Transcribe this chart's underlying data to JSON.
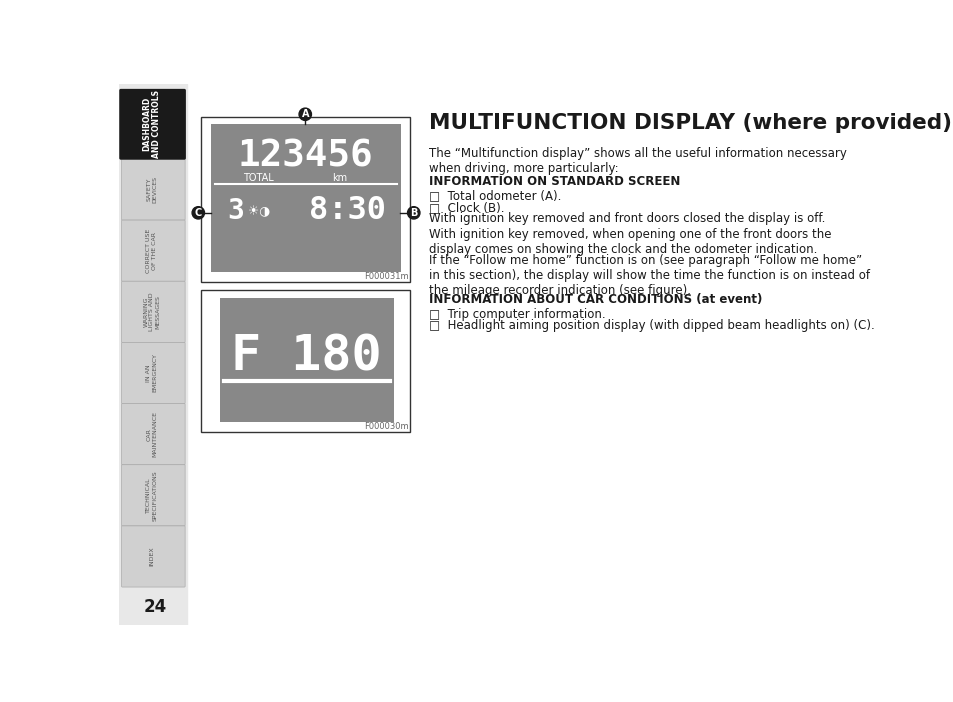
{
  "bg_color": "#ffffff",
  "page_number": "24",
  "sidebar": {
    "tabs": [
      {
        "label": "DASHBOARD\nAND CONTROLS",
        "active": true,
        "bg": "#1a1a1a",
        "fg": "#ffffff"
      },
      {
        "label": "SAFETY\nDEVICES",
        "active": false,
        "bg": "#d0d0d0",
        "fg": "#555555"
      },
      {
        "label": "CORRECT USE\nOF THE CAR",
        "active": false,
        "bg": "#d0d0d0",
        "fg": "#555555"
      },
      {
        "label": "WARNING\nLIGHTS AND\nMESSAGES",
        "active": false,
        "bg": "#d0d0d0",
        "fg": "#555555"
      },
      {
        "label": "IN AN\nEMERGENCY",
        "active": false,
        "bg": "#d0d0d0",
        "fg": "#555555"
      },
      {
        "label": "CAR\nMAINTENANCE",
        "active": false,
        "bg": "#d0d0d0",
        "fg": "#555555"
      },
      {
        "label": "TECHNICAL\nSPECIFICATIONS",
        "active": false,
        "bg": "#d0d0d0",
        "fg": "#555555"
      },
      {
        "label": "INDEX",
        "active": false,
        "bg": "#d0d0d0",
        "fg": "#555555"
      }
    ]
  },
  "title": "MULTIFUNCTION DISPLAY (where provided)",
  "body_text": [
    {
      "type": "para",
      "text": "The “Multifunction display” shows all the useful information necessary\nwhen driving, more particularly:",
      "lines": 2
    },
    {
      "type": "heading",
      "text": "INFORMATION ON STANDARD SCREEN",
      "lines": 1
    },
    {
      "type": "bullet",
      "text": "□  Total odometer (A).",
      "lines": 1
    },
    {
      "type": "bullet",
      "text": "□  Clock (B).",
      "lines": 1
    },
    {
      "type": "para",
      "text": "With ignition key removed and front doors closed the display is off.",
      "lines": 1
    },
    {
      "type": "para",
      "text": "With ignition key removed, when opening one of the front doors the\ndisplay comes on showing the clock and the odometer indication.",
      "lines": 2
    },
    {
      "type": "para",
      "text": "If the “Follow me home” function is on (see paragraph “Follow me home”\nin this section), the display will show the time the function is on instead of\nthe mileage recorder indication (see figure).",
      "lines": 3
    },
    {
      "type": "heading",
      "text": "INFORMATION ABOUT CAR CONDITIONS (at event)",
      "lines": 1
    },
    {
      "type": "bullet",
      "text": "□  Trip computer information.",
      "lines": 1
    },
    {
      "type": "bullet",
      "text": "□  Headlight aiming position display (with dipped beam headlights on) (C).",
      "lines": 1
    }
  ],
  "display_bg": "#888888",
  "display_text_color": "#ffffff",
  "display1": {
    "odometer": "123456",
    "label_total": "TOTAL",
    "label_km": "km",
    "clock": "8:30",
    "headlight_val": "3",
    "caption": "F000031m"
  },
  "display2": {
    "value": "F 180",
    "caption": "F000030m"
  },
  "label_A": "A",
  "label_B": "B",
  "label_C": "C"
}
